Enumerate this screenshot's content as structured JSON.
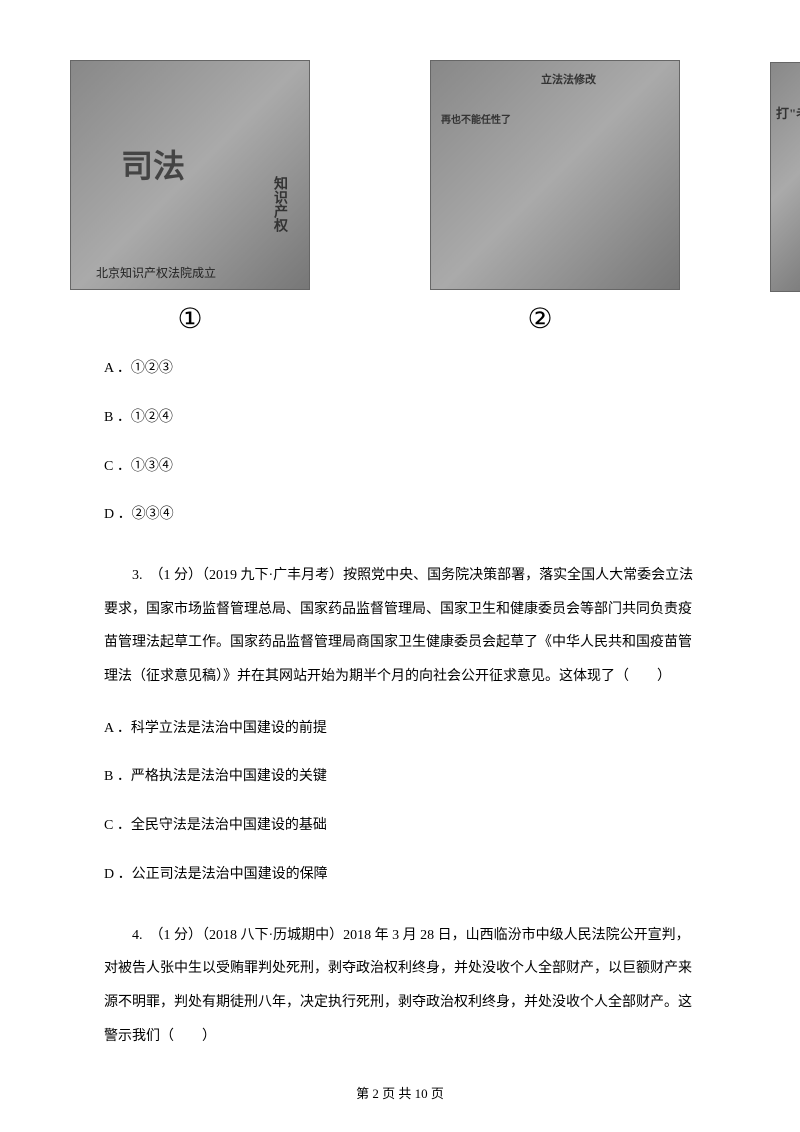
{
  "images": {
    "img1": {
      "text1": "司法",
      "text2": "知识产权",
      "text3": "北京知识产权法院成立",
      "label": "①"
    },
    "img2": {
      "text1": "立法法修改",
      "text2": "再也不能任性了",
      "label": "②"
    },
    "img3": {
      "text1": "打\"老"
    }
  },
  "q2": {
    "options": {
      "a": "A ．①②③",
      "b": "B ．①②④",
      "c": "C ．①③④",
      "d": "D ．②③④"
    }
  },
  "q3": {
    "stem": "3.　（1 分）（2019 九下·广丰月考）按照党中央、国务院决策部署，落实全国人大常委会立法要求，国家市场监督管理总局、国家药品监督管理局、国家卫生和健康委员会等部门共同负责疫苗管理法起草工作。国家药品监督管理局商国家卫生健康委员会起草了《中华人民共和国疫苗管理法（征求意见稿）》并在其网站开始为期半个月的向社会公开征求意见。这体现了（　　）",
    "options": {
      "a": "A ．科学立法是法治中国建设的前提",
      "b": "B ．严格执法是法治中国建设的关键",
      "c": "C ．全民守法是法治中国建设的基础",
      "d": "D ．公正司法是法治中国建设的保障"
    }
  },
  "q4": {
    "stem": "4.　（1 分）（2018 八下·历城期中）2018 年 3 月 28 日，山西临汾市中级人民法院公开宣判，对被告人张中生以受贿罪判处死刑，剥夺政治权利终身，并处没收个人全部财产，以巨额财产来源不明罪，判处有期徒刑八年，决定执行死刑，剥夺政治权利终身，并处没收个人全部财产。这警示我们（　　）"
  },
  "footer": "第 2 页 共 10 页"
}
